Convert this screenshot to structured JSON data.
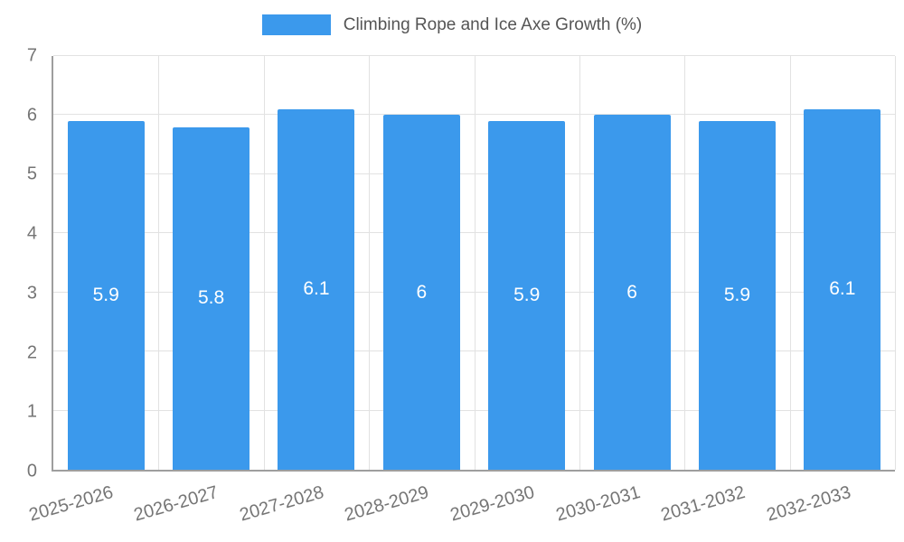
{
  "chart_data": {
    "type": "bar",
    "title": "Climbing Rope and Ice Axe Growth (%)",
    "categories": [
      "2025-2026",
      "2026-2027",
      "2027-2028",
      "2028-2029",
      "2029-2030",
      "2030-2031",
      "2031-2032",
      "2032-2033"
    ],
    "values": [
      5.9,
      5.8,
      6.1,
      6,
      5.9,
      6,
      5.9,
      6.1
    ],
    "data_labels": [
      "5.9",
      "5.8",
      "6.1",
      "6",
      "5.9",
      "6",
      "5.9",
      "6.1"
    ],
    "xlabel": "",
    "ylabel": "",
    "ylim": [
      0,
      7
    ],
    "y_tick_step": 1,
    "y_tick_labels": [
      "0",
      "1",
      "2",
      "3",
      "4",
      "5",
      "6",
      "7"
    ],
    "grid": true,
    "legend_position": "top-center",
    "bar_color": "#3B99EC",
    "bar_label_color": "#ffffff",
    "axis_color": "#9e9e9e",
    "grid_color": "#e2e2e2",
    "tick_text_color": "#757575",
    "title_color": "#555555"
  }
}
